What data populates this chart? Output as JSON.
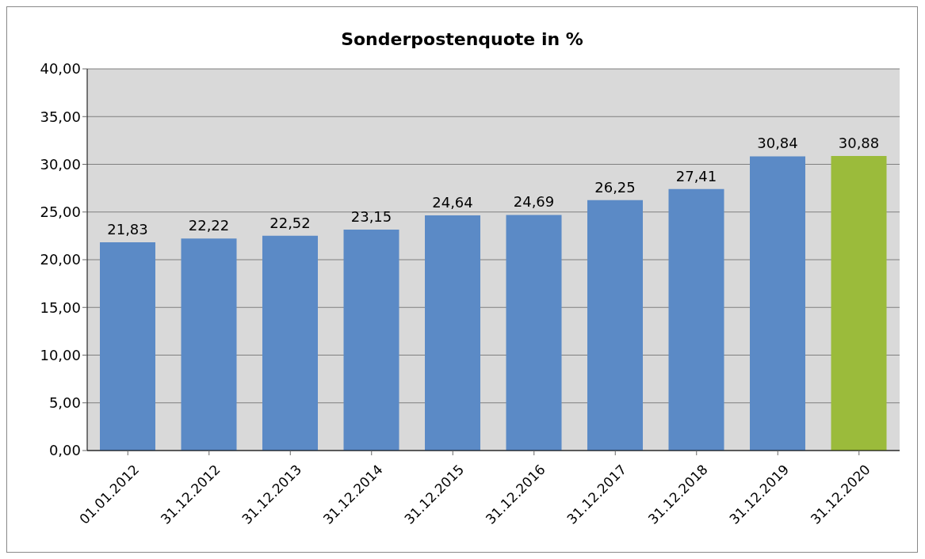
{
  "chart_data": {
    "type": "bar",
    "title": "Sonderpostenquote in %",
    "categories": [
      "01.01.2012",
      "31.12.2012",
      "31.12.2013",
      "31.12.2014",
      "31.12.2015",
      "31.12.2016",
      "31.12.2017",
      "31.12.2018",
      "31.12.2019",
      "31.12.2020"
    ],
    "values": [
      21.83,
      22.22,
      22.52,
      23.15,
      24.64,
      24.69,
      26.25,
      27.41,
      30.84,
      30.88
    ],
    "colors": [
      "#5b8ac6",
      "#5b8ac6",
      "#5b8ac6",
      "#5b8ac6",
      "#5b8ac6",
      "#5b8ac6",
      "#5b8ac6",
      "#5b8ac6",
      "#5b8ac6",
      "#9bbb3b"
    ],
    "value_labels": [
      "21,83",
      "22,22",
      "22,52",
      "23,15",
      "24,64",
      "24,69",
      "26,25",
      "27,41",
      "30,84",
      "30,88"
    ],
    "ylim": [
      0,
      40
    ],
    "yticks": [
      {
        "value": 0,
        "label": "0,00"
      },
      {
        "value": 5,
        "label": "5,00"
      },
      {
        "value": 10,
        "label": "10,00"
      },
      {
        "value": 15,
        "label": "15,00"
      },
      {
        "value": 20,
        "label": "20,00"
      },
      {
        "value": 25,
        "label": "25,00"
      },
      {
        "value": 30,
        "label": "30,00"
      },
      {
        "value": 35,
        "label": "35,00"
      },
      {
        "value": 40,
        "label": "40,00"
      }
    ],
    "grid": "y"
  }
}
